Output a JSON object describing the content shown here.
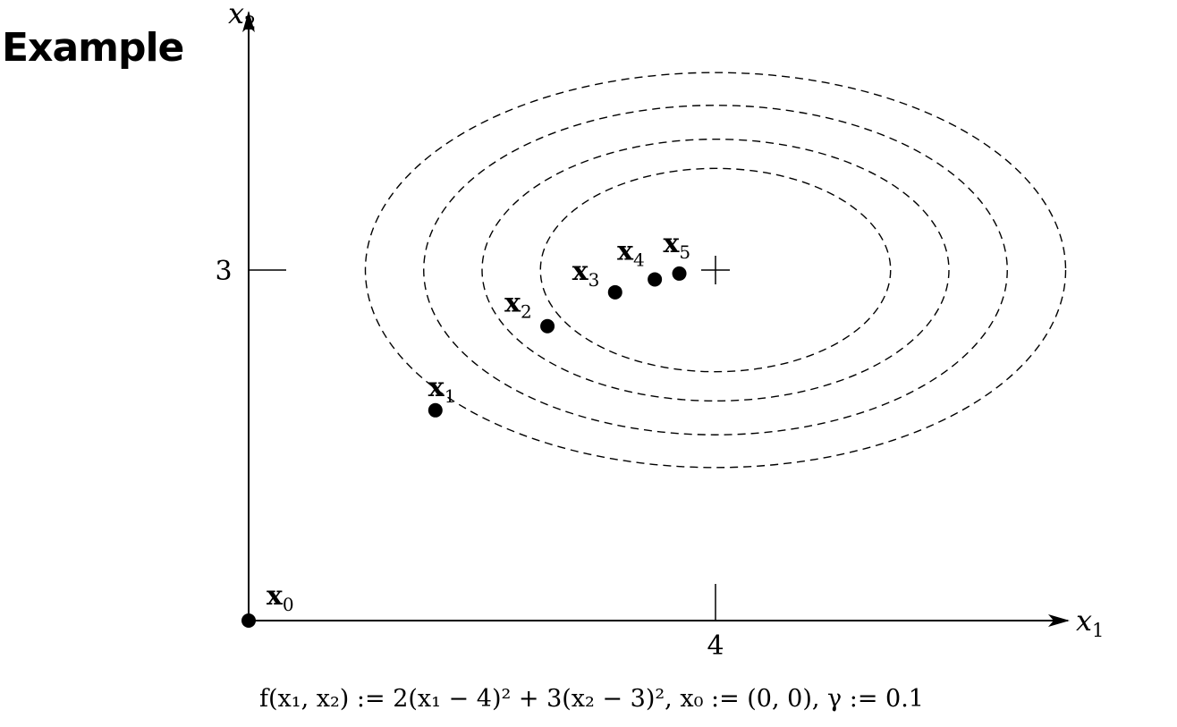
{
  "title": "Example",
  "axes": {
    "x_label": "x",
    "x_sub": "1",
    "y_label": "x",
    "y_sub": "2",
    "x_tick": "4",
    "y_tick": "3"
  },
  "chart_data": {
    "type": "scatter",
    "minimum": {
      "x": 4,
      "y": 3
    },
    "contour_semi_axes": [
      {
        "a": 1.5,
        "b": 0.87
      },
      {
        "a": 2.0,
        "b": 1.12
      },
      {
        "a": 2.5,
        "b": 1.41
      },
      {
        "a": 3.0,
        "b": 1.69
      }
    ],
    "iterates": [
      {
        "name": "x",
        "sub": "0",
        "x": 0.0,
        "y": 0.0
      },
      {
        "name": "x",
        "sub": "1",
        "x": 1.6,
        "y": 1.8
      },
      {
        "name": "x",
        "sub": "2",
        "x": 2.56,
        "y": 2.52
      },
      {
        "name": "x",
        "sub": "3",
        "x": 3.14,
        "y": 2.81
      },
      {
        "name": "x",
        "sub": "4",
        "x": 3.48,
        "y": 2.92
      },
      {
        "name": "x",
        "sub": "5",
        "x": 3.69,
        "y": 2.97
      }
    ]
  },
  "formula": {
    "text": "f(x₁, x₂) := 2(x₁ − 4)² + 3(x₂ − 3)², x₀ := (0, 0), γ := 0.1"
  }
}
